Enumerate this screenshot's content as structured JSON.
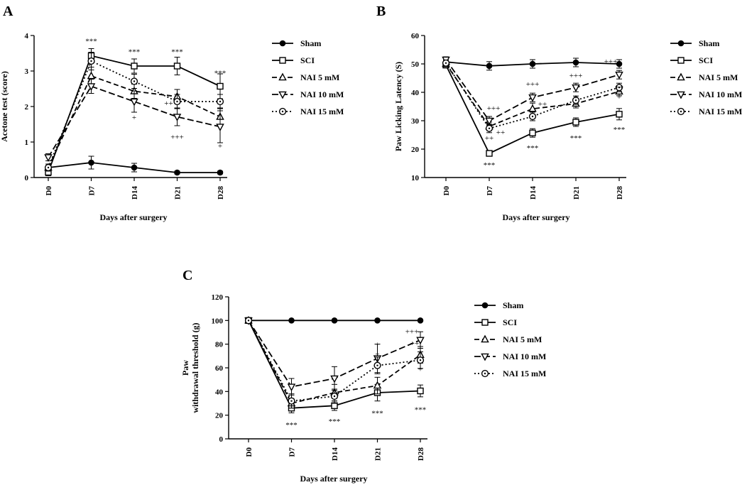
{
  "figure": {
    "panels": [
      "A",
      "B",
      "C"
    ]
  },
  "chart_data": [
    {
      "panel": "A",
      "type": "line",
      "xlabel": "Days after surgery",
      "ylabel": "Acetone test (score)",
      "categories": [
        "D0",
        "D7",
        "D14",
        "D21",
        "D28"
      ],
      "ylim": [
        0,
        4
      ],
      "yticks": [
        "0",
        "1",
        "2",
        "3",
        "4"
      ],
      "series": [
        {
          "name": "Sham",
          "marker": "dot",
          "dash": "solid",
          "values": [
            0.28,
            0.42,
            0.28,
            0.14,
            0.14
          ],
          "errors": [
            0.05,
            0.18,
            0.12,
            0.04,
            0.04
          ]
        },
        {
          "name": "SCI",
          "marker": "square",
          "dash": "solid",
          "values": [
            0.15,
            3.43,
            3.14,
            3.14,
            2.57
          ],
          "errors": [
            0.1,
            0.2,
            0.2,
            0.25,
            0.35
          ]
        },
        {
          "name": "NAI 5 mM",
          "marker": "triangle-up",
          "dash": "dash",
          "values": [
            0.28,
            2.86,
            2.43,
            2.28,
            1.71
          ],
          "errors": [
            0.1,
            0.25,
            0.2,
            0.2,
            0.25
          ]
        },
        {
          "name": "NAI 10 mM",
          "marker": "triangle-down",
          "dash": "dashlong",
          "values": [
            0.57,
            2.57,
            2.14,
            1.71,
            1.43
          ],
          "errors": [
            0.1,
            0.2,
            0.3,
            0.25,
            0.45
          ]
        },
        {
          "name": "NAI 15 mM",
          "marker": "circle",
          "dash": "dot",
          "values": [
            0.28,
            3.28,
            2.71,
            2.14,
            2.14
          ],
          "errors": [
            0.1,
            0.25,
            0.2,
            0.2,
            0.2
          ]
        }
      ],
      "annotations": [
        {
          "text": "***",
          "x": "D7",
          "y": 3.85
        },
        {
          "text": "***",
          "x": "D14",
          "y": 3.55
        },
        {
          "text": "***",
          "x": "D21",
          "y": 3.55
        },
        {
          "text": "***",
          "x": "D28",
          "y": 2.95
        },
        {
          "text": "+",
          "x": "D14",
          "y": 1.7
        },
        {
          "text": "++",
          "x": "D21",
          "y": 2.1,
          "dx": -12
        },
        {
          "text": "+++",
          "x": "D21",
          "y": 1.15
        },
        {
          "text": "+",
          "x": "D28",
          "y": 0.9
        }
      ]
    },
    {
      "panel": "B",
      "type": "line",
      "xlabel": "Days after surgery",
      "ylabel": "Paw Licking Latency (S)",
      "categories": [
        "D0",
        "D7",
        "D14",
        "D21",
        "D28"
      ],
      "ylim": [
        10,
        60
      ],
      "yticks": [
        "10",
        "20",
        "30",
        "40",
        "50",
        "60"
      ],
      "series": [
        {
          "name": "Sham",
          "marker": "dot",
          "dash": "solid",
          "values": [
            50.7,
            49.3,
            50.0,
            50.5,
            50.0
          ],
          "errors": [
            1,
            1.5,
            1.5,
            1.5,
            1.5
          ]
        },
        {
          "name": "SCI",
          "marker": "square",
          "dash": "solid",
          "values": [
            49.6,
            18.5,
            25.7,
            29.5,
            32.3
          ],
          "errors": [
            1,
            1,
            1.5,
            1.5,
            2
          ]
        },
        {
          "name": "NAI 5 mM",
          "marker": "triangle-up",
          "dash": "dash",
          "values": [
            50.0,
            28.0,
            34.2,
            36.0,
            40.3
          ],
          "errors": [
            1,
            1.5,
            2,
            1.5,
            1.5
          ]
        },
        {
          "name": "NAI 10 mM",
          "marker": "triangle-down",
          "dash": "dashlong",
          "values": [
            51.5,
            30.0,
            38.2,
            41.7,
            46.2
          ],
          "errors": [
            1,
            1.5,
            1.5,
            1.5,
            1.5
          ]
        },
        {
          "name": "NAI 15 mM",
          "marker": "circle",
          "dash": "dot",
          "values": [
            50.3,
            27.3,
            31.5,
            37.2,
            41.7
          ],
          "errors": [
            1,
            1.5,
            1.5,
            1.5,
            1.5
          ]
        }
      ],
      "annotations": [
        {
          "text": "***",
          "x": "D7",
          "y": 14.5
        },
        {
          "text": "***",
          "x": "D14",
          "y": 20.5
        },
        {
          "text": "***",
          "x": "D21",
          "y": 24.0
        },
        {
          "text": "***",
          "x": "D28",
          "y": 27.0
        },
        {
          "text": "+++",
          "x": "D7",
          "y": 34.5,
          "dx": 6
        },
        {
          "text": "++",
          "x": "D7",
          "y": 24.0
        },
        {
          "text": "++",
          "x": "D7",
          "y": 26.0,
          "dx": 16
        },
        {
          "text": "+++",
          "x": "D14",
          "y": 43.0
        },
        {
          "text": "++",
          "x": "D14",
          "y": 36.0,
          "dx": 14
        },
        {
          "text": "+++",
          "x": "D21",
          "y": 46.0
        },
        {
          "text": "+",
          "x": "D21",
          "y": 38.5
        },
        {
          "text": "+++",
          "x": "D28",
          "y": 51.0,
          "dx": -12
        },
        {
          "text": "++",
          "x": "D28",
          "y": 42.0
        },
        {
          "text": "+",
          "x": "D28",
          "y": 38.5
        }
      ]
    },
    {
      "panel": "C",
      "type": "line",
      "xlabel": "Days after surgery",
      "ylabel_lines": [
        "Paw",
        "withdrawal threshold (g)"
      ],
      "categories": [
        "D0",
        "D7",
        "D14",
        "D21",
        "D28"
      ],
      "ylim": [
        0,
        120
      ],
      "yticks": [
        "0",
        "20",
        "40",
        "60",
        "80",
        "100",
        "120"
      ],
      "series": [
        {
          "name": "Sham",
          "marker": "dot",
          "dash": "solid",
          "values": [
            100,
            100,
            100,
            100,
            100
          ],
          "errors": [
            0,
            0,
            0,
            0,
            0
          ]
        },
        {
          "name": "SCI",
          "marker": "square",
          "dash": "solid",
          "values": [
            100,
            26,
            28,
            39,
            40.5
          ],
          "errors": [
            0,
            4,
            4,
            7,
            5
          ]
        },
        {
          "name": "NAI 5 mM",
          "marker": "triangle-up",
          "dash": "dash",
          "values": [
            100,
            30,
            39,
            45,
            71
          ],
          "errors": [
            0,
            4,
            7,
            7,
            7
          ]
        },
        {
          "name": "NAI 10 mM",
          "marker": "triangle-down",
          "dash": "dashlong",
          "values": [
            100,
            44,
            51,
            68,
            83.5
          ],
          "errors": [
            0,
            7,
            10,
            12,
            7
          ]
        },
        {
          "name": "NAI 15 mM",
          "marker": "circle",
          "dash": "dot",
          "values": [
            100,
            32,
            36,
            62,
            66.5
          ],
          "errors": [
            0,
            6,
            6,
            7,
            7
          ]
        }
      ],
      "annotations": [
        {
          "text": "***",
          "x": "D7",
          "y": 12
        },
        {
          "text": "***",
          "x": "D14",
          "y": 15
        },
        {
          "text": "***",
          "x": "D21",
          "y": 22
        },
        {
          "text": "***",
          "x": "D28",
          "y": 25
        },
        {
          "text": "+",
          "x": "D21",
          "y": 80
        },
        {
          "text": "+",
          "x": "D21",
          "y": 72
        },
        {
          "text": "+++",
          "x": "D28",
          "y": 91,
          "dx": -12
        },
        {
          "text": "++",
          "x": "D28",
          "y": 81,
          "dx": -8
        },
        {
          "text": "+",
          "x": "D28",
          "y": 59
        }
      ]
    }
  ]
}
